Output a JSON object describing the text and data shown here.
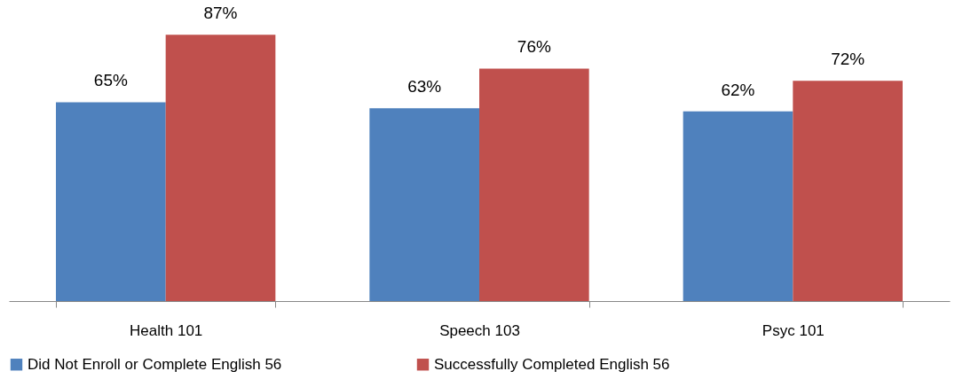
{
  "chart_data": {
    "type": "bar",
    "categories": [
      "Health 101",
      "Speech 103",
      "Psyc 101"
    ],
    "series": [
      {
        "name": "Did Not Enroll or Complete English 56",
        "color": "#4f81bd",
        "values": [
          65,
          63,
          62
        ],
        "value_labels": [
          "65%",
          "63%",
          "62%"
        ]
      },
      {
        "name": "Successfully Completed English 56",
        "color": "#c0504d",
        "values": [
          87,
          76,
          72
        ],
        "value_labels": [
          "87%",
          "76%",
          "72%"
        ]
      }
    ],
    "legend": "bottom",
    "grid": false
  }
}
